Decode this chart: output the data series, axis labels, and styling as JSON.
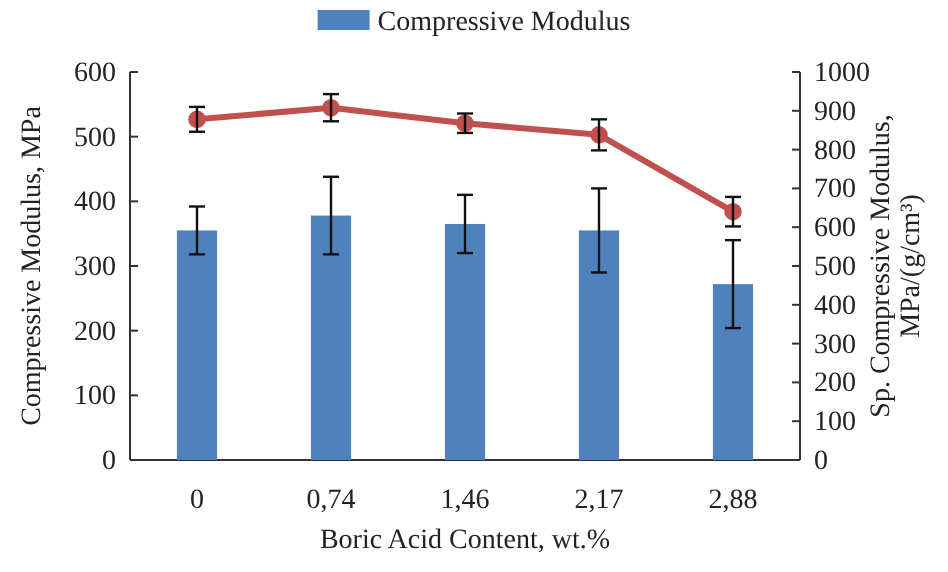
{
  "chart_data": {
    "type": "bar",
    "categories": [
      "0",
      "0,74",
      "1,46",
      "2,17",
      "2,88"
    ],
    "xlabel": "Boric Acid Content, wt.%",
    "ylabel": "Compressive Modulus,  MPa",
    "y2label": "Sp. Compressive Modulus,\nMPa/(g/cm³)",
    "ylim": [
      0,
      600
    ],
    "yticks": [
      0,
      100,
      200,
      300,
      400,
      500,
      600
    ],
    "y2lim": [
      0,
      1000
    ],
    "y2ticks": [
      0,
      100,
      200,
      300,
      400,
      500,
      600,
      700,
      800,
      900,
      1000
    ],
    "legend": "top",
    "grid": false,
    "series": [
      {
        "name": "Compressive Modulus",
        "color": "#4f81bd",
        "values": [
          355,
          378,
          365,
          355,
          272
        ],
        "errors": [
          37,
          60,
          45,
          65,
          68
        ]
      },
      {
        "type": "line",
        "axis": "y2",
        "color": "#c0504d",
        "marker": "circle",
        "values": [
          878,
          908,
          868,
          838,
          640
        ],
        "errors": [
          32,
          35,
          25,
          40,
          38
        ]
      }
    ]
  }
}
